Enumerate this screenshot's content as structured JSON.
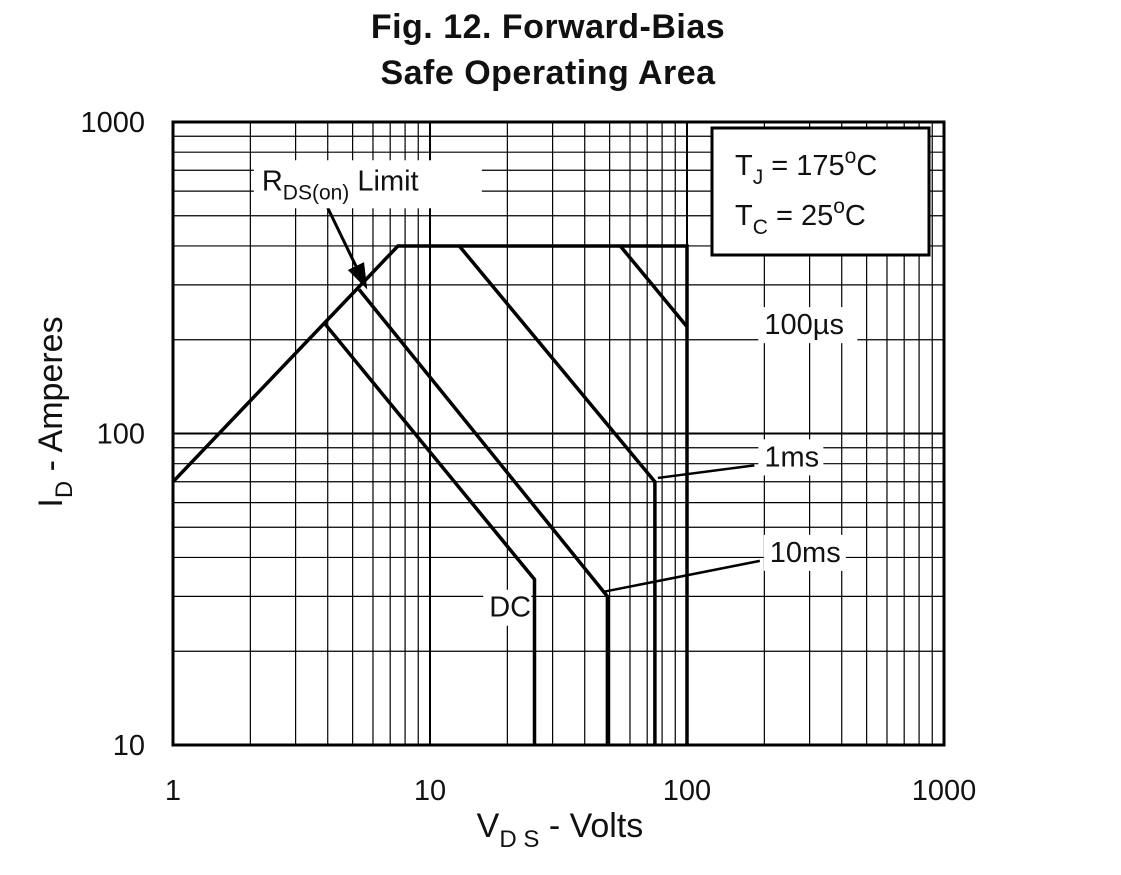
{
  "chart_data": {
    "type": "line",
    "title_line1": "Fig. 12. Forward-Bias",
    "title_line2": "Safe Operating Area",
    "xlabel": {
      "main": "V",
      "sub": "D S",
      "rest": " - Volts"
    },
    "ylabel": {
      "main": "I",
      "sub": "D",
      "rest": " - Amperes"
    },
    "x_scale": "log",
    "y_scale": "log",
    "xlim": [
      1,
      1000
    ],
    "ylim": [
      10,
      1000
    ],
    "x_ticks": [
      {
        "value": 1,
        "label": "1"
      },
      {
        "value": 10,
        "label": "10"
      },
      {
        "value": 100,
        "label": "100"
      },
      {
        "value": 1000,
        "label": "1000"
      }
    ],
    "y_ticks": [
      {
        "value": 10,
        "label": "10"
      },
      {
        "value": 100,
        "label": "100"
      },
      {
        "value": 1000,
        "label": "1000"
      }
    ],
    "grid": true,
    "conditions": {
      "tj": {
        "main": "T",
        "sub": "J",
        "text": " = 175",
        "sup": "o",
        "unit": "C"
      },
      "tc": {
        "main": "T",
        "sub": "C",
        "text": " = 25",
        "sup": "o",
        "unit": "C"
      },
      "legend_position": "top-right"
    },
    "rds_label": {
      "main": "R",
      "sub": "DS(on)",
      "rest": " Limit"
    },
    "series": [
      {
        "name": "100µs",
        "points": [
          [
            1,
            70
          ],
          [
            7.5,
            400
          ],
          [
            100,
            400
          ],
          [
            100,
            10
          ]
        ]
      },
      {
        "name": "100µs",
        "points": [
          [
            55,
            400
          ],
          [
            100,
            220
          ]
        ]
      },
      {
        "name": "1ms",
        "points": [
          [
            13,
            400
          ],
          [
            75,
            70
          ],
          [
            75,
            10
          ]
        ]
      },
      {
        "name": "10ms",
        "points": [
          [
            5.3,
            290
          ],
          [
            49,
            30
          ],
          [
            49,
            10
          ]
        ]
      },
      {
        "name": "DC",
        "points": [
          [
            3.9,
            225
          ],
          [
            25.5,
            34
          ],
          [
            25.5,
            10
          ]
        ]
      }
    ],
    "annotations": [
      {
        "id": "100us",
        "text": "100µs",
        "x": 200,
        "y": 210
      },
      {
        "id": "1ms",
        "text": "1ms",
        "x": 200,
        "y": 79,
        "arrow_to": [
          77,
          72
        ]
      },
      {
        "id": "10ms",
        "text": "10ms",
        "x": 210,
        "y": 39,
        "arrow_to": [
          47,
          31
        ]
      },
      {
        "id": "dc",
        "text": "DC",
        "x": 17,
        "y": 26
      }
    ],
    "rds_arrow": {
      "from": [
        4.0,
        530
      ],
      "to": [
        5.7,
        290
      ],
      "label_at": [
        2.9,
        650
      ]
    }
  }
}
